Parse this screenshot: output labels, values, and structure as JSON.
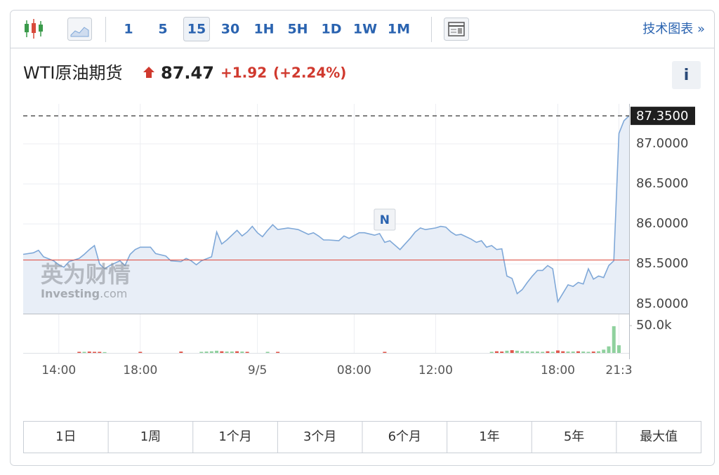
{
  "toolbar": {
    "intervals": [
      "1",
      "5",
      "15",
      "30",
      "1H",
      "5H",
      "1D",
      "1W",
      "1M"
    ],
    "selected": 2,
    "link": "技术图表 »"
  },
  "header": {
    "name": "WTI原油期货",
    "price": "87.47",
    "change": "+1.92",
    "change_percent": "(+2.24%)",
    "info": "i"
  },
  "watermark": {
    "title": "英为财情",
    "brand": "Investing",
    "domain": ".com"
  },
  "chart_data": [
    {
      "type": "area",
      "x": [
        0,
        2,
        3,
        4,
        6,
        7,
        8,
        9,
        11,
        12,
        13,
        14,
        15,
        16,
        17,
        19,
        20,
        21,
        22,
        23,
        25,
        26,
        28,
        29,
        31,
        32,
        33,
        34,
        35,
        37,
        38,
        39,
        40,
        42,
        43,
        44,
        45,
        46,
        47,
        48,
        49,
        50,
        52,
        53,
        54,
        56,
        57,
        58,
        59,
        60,
        62,
        63,
        64,
        66,
        67,
        69,
        70,
        71,
        72,
        74,
        75,
        76,
        77,
        78,
        79,
        81,
        82,
        83,
        84,
        85,
        86,
        88,
        89,
        90,
        91,
        92,
        93,
        94,
        95,
        96,
        97,
        98,
        99,
        100,
        101,
        102,
        103,
        104,
        105,
        107,
        108,
        109,
        110,
        111,
        112,
        113,
        114,
        115,
        116,
        117,
        118,
        119
      ],
      "values": [
        85.62,
        85.64,
        85.67,
        85.59,
        85.54,
        85.49,
        85.46,
        85.53,
        85.57,
        85.62,
        85.68,
        85.73,
        85.5,
        85.44,
        85.48,
        85.54,
        85.48,
        85.62,
        85.68,
        85.71,
        85.71,
        85.63,
        85.6,
        85.54,
        85.53,
        85.57,
        85.54,
        85.49,
        85.54,
        85.59,
        85.9,
        85.75,
        85.8,
        85.92,
        85.85,
        85.9,
        85.97,
        85.89,
        85.84,
        85.92,
        85.99,
        85.93,
        85.95,
        85.94,
        85.93,
        85.87,
        85.89,
        85.85,
        85.8,
        85.8,
        85.79,
        85.85,
        85.82,
        85.89,
        85.89,
        85.86,
        85.88,
        85.77,
        85.79,
        85.68,
        85.75,
        85.82,
        85.9,
        85.95,
        85.93,
        85.95,
        85.97,
        85.96,
        85.9,
        85.86,
        85.87,
        85.81,
        85.77,
        85.79,
        85.71,
        85.73,
        85.68,
        85.69,
        85.35,
        85.32,
        85.13,
        85.18,
        85.27,
        85.35,
        85.42,
        85.42,
        85.48,
        85.44,
        85.03,
        85.24,
        85.22,
        85.27,
        85.25,
        85.44,
        85.31,
        85.35,
        85.33,
        85.48,
        85.54,
        87.13,
        87.29,
        87.35
      ],
      "color": "#7fa8d8",
      "fill": "#e8eef7",
      "xlim": [
        0,
        119
      ],
      "xticks": [
        {
          "value": 7,
          "label": "14:00"
        },
        {
          "value": 23,
          "label": "18:00"
        },
        {
          "value": 46,
          "label": "9/5"
        },
        {
          "value": 65,
          "label": "08:00"
        },
        {
          "value": 81,
          "label": "12:00"
        },
        {
          "value": 105,
          "label": "18:00"
        },
        {
          "value": 117,
          "label": "21:3"
        }
      ],
      "ylim": [
        84.88,
        87.5
      ],
      "yticks": [
        {
          "value": 85,
          "label": "85.0000"
        },
        {
          "value": 85.5,
          "label": "85.5000"
        },
        {
          "value": 86,
          "label": "86.0000"
        },
        {
          "value": 86.5,
          "label": "86.5000"
        },
        {
          "value": 87,
          "label": "87.0000"
        }
      ],
      "grid": true,
      "last_price": {
        "value": 87.35,
        "label": "87.3500"
      },
      "reference_line": {
        "value": 85.55,
        "color": "#e0574c"
      },
      "annotations": [
        {
          "x": 71,
          "text": "N"
        }
      ]
    },
    {
      "type": "bar",
      "x": [
        11,
        12,
        13,
        14,
        15,
        16,
        23,
        31,
        35,
        36,
        37,
        38,
        39,
        40,
        41,
        42,
        43,
        44,
        48,
        50,
        71,
        92,
        93,
        94,
        95,
        96,
        97,
        98,
        99,
        100,
        101,
        102,
        103,
        104,
        105,
        106,
        107,
        108,
        109,
        110,
        111,
        112,
        113,
        114,
        115,
        116,
        117
      ],
      "values": [
        2000,
        2000,
        2500,
        2000,
        2000,
        1500,
        2000,
        2500,
        2000,
        2500,
        3000,
        4000,
        3000,
        2500,
        2500,
        3000,
        2500,
        2000,
        2000,
        2000,
        2000,
        2000,
        3000,
        2500,
        4000,
        5000,
        4000,
        3000,
        3000,
        2500,
        2500,
        2000,
        3000,
        2000,
        4500,
        3000,
        2500,
        2500,
        3000,
        2500,
        2000,
        2500,
        3000,
        6000,
        12000,
        49000,
        14000
      ],
      "colors": [
        "#e0574c",
        "#8fd19e",
        "#e0574c",
        "#e0574c",
        "#e0574c",
        "#8fd19e",
        "#e0574c",
        "#e0574c",
        "#8fd19e",
        "#8fd19e",
        "#8fd19e",
        "#8fd19e",
        "#e0574c",
        "#8fd19e",
        "#8fd19e",
        "#e0574c",
        "#8fd19e",
        "#e0574c",
        "#8fd19e",
        "#e0574c",
        "#e0574c",
        "#8fd19e",
        "#e0574c",
        "#e0574c",
        "#8fd19e",
        "#e0574c",
        "#8fd19e",
        "#8fd19e",
        "#8fd19e",
        "#8fd19e",
        "#8fd19e",
        "#8fd19e",
        "#e0574c",
        "#8fd19e",
        "#e0574c",
        "#e0574c",
        "#8fd19e",
        "#8fd19e",
        "#e0574c",
        "#8fd19e",
        "#8fd19e",
        "#e0574c",
        "#8fd19e",
        "#8fd19e",
        "#8fd19e",
        "#8fd19e",
        "#8fd19e"
      ],
      "xlim": [
        0,
        119
      ],
      "ylim": [
        0,
        72000
      ],
      "yticks": [
        {
          "value": 50000,
          "label": "50.0k"
        }
      ]
    }
  ],
  "ranges": [
    "1日",
    "1周",
    "1个月",
    "3个月",
    "6个月",
    "1年",
    "5年",
    "最大值"
  ]
}
